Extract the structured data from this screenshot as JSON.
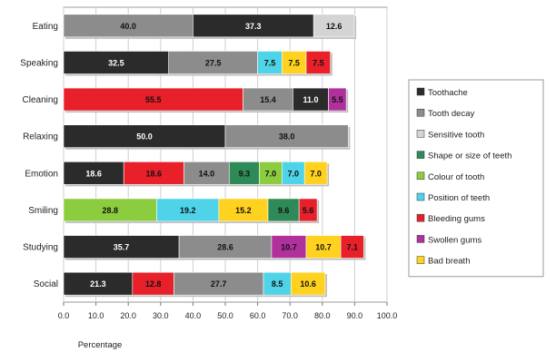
{
  "chart_data": {
    "type": "bar",
    "orientation": "horizontal",
    "stacked": true,
    "xlabel": "Percentage",
    "xlim": [
      0,
      100
    ],
    "xticks": [
      "0.0",
      "10.0",
      "20.0",
      "30.0",
      "40.0",
      "50.0",
      "60.0",
      "70.0",
      "80.0",
      "90.0",
      "100.0"
    ],
    "xgrid": true,
    "legend_position": "right",
    "series": [
      {
        "name": "Toothache",
        "color": "#2b2b2b",
        "label_color": "#ffffff"
      },
      {
        "name": "Tooth decay",
        "color": "#8c8c8c",
        "label_color": "#111111"
      },
      {
        "name": "Sensitive tooth",
        "color": "#d4d4d4",
        "label_color": "#111111"
      },
      {
        "name": "Shape or size of teeth",
        "color": "#2e8b57",
        "label_color": "#111111"
      },
      {
        "name": "Colour of tooth",
        "color": "#8ccc3f",
        "label_color": "#111111"
      },
      {
        "name": "Position of teeth",
        "color": "#4fd3e8",
        "label_color": "#111111"
      },
      {
        "name": "Bleeding gums",
        "color": "#e8202a",
        "label_color": "#111111"
      },
      {
        "name": "Swollen gums",
        "color": "#b0309c",
        "label_color": "#111111"
      },
      {
        "name": "Bad breath",
        "color": "#ffd21f",
        "label_color": "#111111"
      }
    ],
    "categories": [
      {
        "name": "Eating",
        "segments": [
          {
            "series": "Tooth decay",
            "value": 40.0,
            "label": "40.0"
          },
          {
            "series": "Toothache",
            "value": 37.3,
            "label": "37.3"
          },
          {
            "series": "Sensitive tooth",
            "value": 12.6,
            "label": "12.6"
          }
        ]
      },
      {
        "name": "Speaking",
        "segments": [
          {
            "series": "Toothache",
            "value": 32.5,
            "label": "32.5"
          },
          {
            "series": "Tooth decay",
            "value": 27.5,
            "label": "27.5"
          },
          {
            "series": "Position of teeth",
            "value": 7.5,
            "label": "7.5"
          },
          {
            "series": "Bad breath",
            "value": 7.5,
            "label": "7.5"
          },
          {
            "series": "Bleeding gums",
            "value": 7.5,
            "label": "7.5"
          }
        ]
      },
      {
        "name": "Cleaning",
        "segments": [
          {
            "series": "Bleeding gums",
            "value": 55.5,
            "label": "55.5"
          },
          {
            "series": "Tooth decay",
            "value": 15.4,
            "label": "15.4"
          },
          {
            "series": "Toothache",
            "value": 11.0,
            "label": "11.0"
          },
          {
            "series": "Swollen gums",
            "value": 5.5,
            "label": "5.5"
          }
        ]
      },
      {
        "name": "Relaxing",
        "segments": [
          {
            "series": "Toothache",
            "value": 50.0,
            "label": "50.0"
          },
          {
            "series": "Tooth decay",
            "value": 38.0,
            "label": "38.0"
          }
        ]
      },
      {
        "name": "Emotion",
        "segments": [
          {
            "series": "Toothache",
            "value": 18.6,
            "label": "18.6"
          },
          {
            "series": "Bleeding gums",
            "value": 18.6,
            "label": "18.6"
          },
          {
            "series": "Tooth decay",
            "value": 14.0,
            "label": "14.0"
          },
          {
            "series": "Shape or size of teeth",
            "value": 9.3,
            "label": "9.3"
          },
          {
            "series": "Colour of tooth",
            "value": 7.0,
            "label": "7.0"
          },
          {
            "series": "Position of teeth",
            "value": 7.0,
            "label": "7.0"
          },
          {
            "series": "Bad breath",
            "value": 7.0,
            "label": "7.0"
          }
        ]
      },
      {
        "name": "Smiling",
        "segments": [
          {
            "series": "Colour of tooth",
            "value": 28.8,
            "label": "28.8"
          },
          {
            "series": "Position of teeth",
            "value": 19.2,
            "label": "19.2"
          },
          {
            "series": "Bad breath",
            "value": 15.2,
            "label": "15.2"
          },
          {
            "series": "Shape or size of teeth",
            "value": 9.6,
            "label": "9.6"
          },
          {
            "series": "Bleeding gums",
            "value": 5.6,
            "label": "5.6"
          }
        ]
      },
      {
        "name": "Studying",
        "segments": [
          {
            "series": "Toothache",
            "value": 35.7,
            "label": "35.7"
          },
          {
            "series": "Tooth decay",
            "value": 28.6,
            "label": "28.6"
          },
          {
            "series": "Swollen gums",
            "value": 10.7,
            "label": "10.7"
          },
          {
            "series": "Bad breath",
            "value": 10.7,
            "label": "10.7"
          },
          {
            "series": "Bleeding gums",
            "value": 7.1,
            "label": "7.1"
          }
        ]
      },
      {
        "name": "Social",
        "segments": [
          {
            "series": "Toothache",
            "value": 21.3,
            "label": "21.3"
          },
          {
            "series": "Bleeding gums",
            "value": 12.8,
            "label": "12.8"
          },
          {
            "series": "Tooth decay",
            "value": 27.7,
            "label": "27.7"
          },
          {
            "series": "Position of teeth",
            "value": 8.5,
            "label": "8.5"
          },
          {
            "series": "Bad breath",
            "value": 10.6,
            "label": "10.6"
          }
        ]
      }
    ]
  }
}
